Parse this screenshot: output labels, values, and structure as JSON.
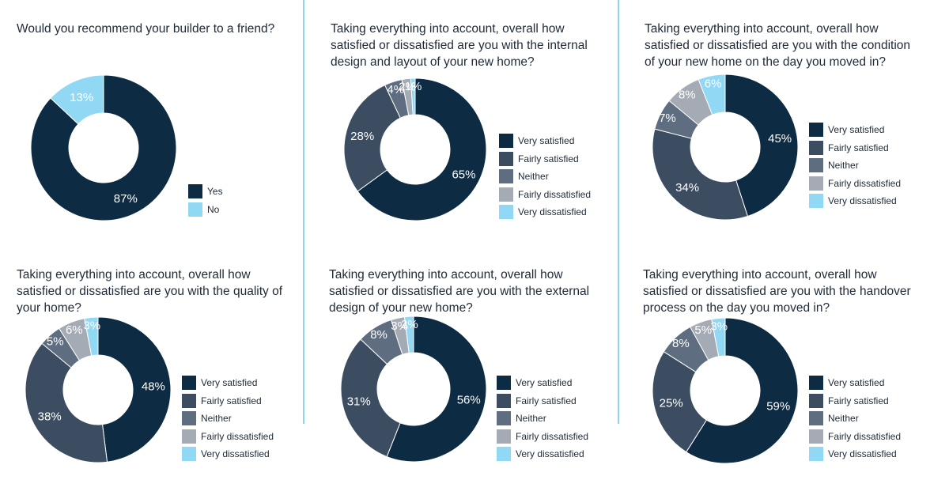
{
  "colors": {
    "very_satisfied": "#0d2b42",
    "fairly_satisfied": "#3c4d61",
    "neither": "#5e6d7f",
    "fairly_dissatisfied": "#a4abb5",
    "very_dissatisfied": "#91d8f5",
    "divider": "#8fd3ec"
  },
  "chart_data": [
    {
      "type": "pie",
      "title": "Would you recommend your builder to a friend?",
      "categories": [
        "Yes",
        "No"
      ],
      "values": [
        87,
        13
      ],
      "labels": [
        "87%",
        "13%"
      ],
      "legend_position": "right"
    },
    {
      "type": "pie",
      "title": "Taking everything into account, overall how satisfied or dissatisfied are you with the internal design and layout of your new home?",
      "categories": [
        "Very satisfied",
        "Fairly satisfied",
        "Neither",
        "Fairly dissatisfied",
        "Very dissatisfied"
      ],
      "values": [
        65,
        28,
        4,
        2,
        1
      ],
      "labels": [
        "65%",
        "28%",
        "4%",
        "2%",
        "1%"
      ],
      "legend_position": "right"
    },
    {
      "type": "pie",
      "title": "Taking everything into account, overall how satisfied or dissatisfied are you with the condition of your new home on the day you moved in?",
      "categories": [
        "Very satisfied",
        "Fairly satisfied",
        "Neither",
        "Fairly dissatisfied",
        "Very dissatisfied"
      ],
      "values": [
        45,
        34,
        7,
        8,
        6
      ],
      "labels": [
        "45%",
        "34%",
        "7%",
        "8%",
        "6%"
      ],
      "legend_position": "right"
    },
    {
      "type": "pie",
      "title": "Taking everything into account, overall how satisfied or dissatisfied are you with the quality of your home?",
      "categories": [
        "Very satisfied",
        "Fairly satisfied",
        "Neither",
        "Fairly dissatisfied",
        "Very dissatisfied"
      ],
      "values": [
        48,
        38,
        5,
        6,
        3
      ],
      "labels": [
        "48%",
        "38%",
        "5%",
        "6%",
        "3%"
      ],
      "legend_position": "right"
    },
    {
      "type": "pie",
      "title": "Taking everything into account, overall how satisfied or dissatisfied are you with the external design of your new home?",
      "categories": [
        "Very satisfied",
        "Fairly satisfied",
        "Neither",
        "Fairly dissatisfied",
        "Very dissatisfied"
      ],
      "values": [
        56,
        31,
        8,
        3,
        2
      ],
      "labels": [
        "56%",
        "31%",
        "8%",
        "3%",
        "2%"
      ],
      "legend_position": "right"
    },
    {
      "type": "pie",
      "title": "Taking everything into account, overall how satisfied or dissatisfied are you with the handover process on the day you moved in?",
      "categories": [
        "Very satisfied",
        "Fairly satisfied",
        "Neither",
        "Fairly dissatisfied",
        "Very dissatisfied"
      ],
      "values": [
        59,
        25,
        8,
        5,
        3
      ],
      "labels": [
        "59%",
        "25%",
        "8%",
        "5%",
        "3%"
      ],
      "legend_position": "right"
    }
  ]
}
